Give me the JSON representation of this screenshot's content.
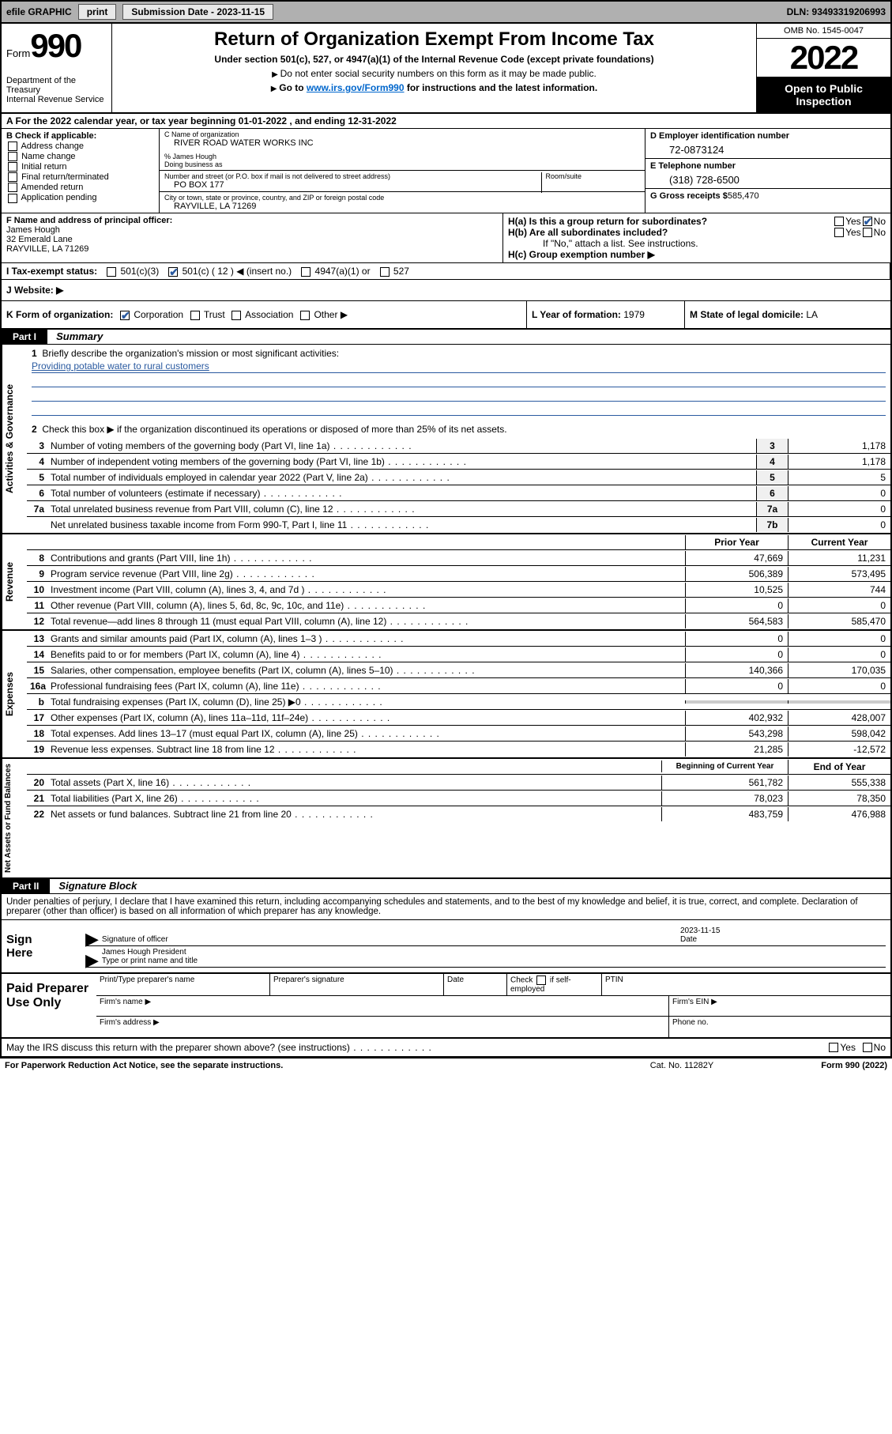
{
  "topbar": {
    "efile": "efile GRAPHIC",
    "print": "print",
    "sub_lbl": "Submission Date - 2023-11-15",
    "dln": "DLN: 93493319206993"
  },
  "header": {
    "form_word": "Form",
    "form_num": "990",
    "dept": "Department of the Treasury",
    "irs": "Internal Revenue Service",
    "title": "Return of Organization Exempt From Income Tax",
    "sub": "Under section 501(c), 527, or 4947(a)(1) of the Internal Revenue Code (except private foundations)",
    "inst1": "Do not enter social security numbers on this form as it may be made public.",
    "inst2_a": "Go to ",
    "inst2_link": "www.irs.gov/Form990",
    "inst2_b": " for instructions and the latest information.",
    "omb": "OMB No. 1545-0047",
    "year": "2022",
    "open": "Open to Public Inspection"
  },
  "rowA": {
    "text_a": "A For the 2022 calendar year, or tax year beginning ",
    "begin": "01-01-2022",
    "text_b": "   , and ending ",
    "end": "12-31-2022"
  },
  "colB": {
    "hdr": "B Check if applicable:",
    "items": [
      "Address change",
      "Name change",
      "Initial return",
      "Final return/terminated",
      "Amended return",
      "Application pending"
    ]
  },
  "colC": {
    "name_lb": "C Name of organization",
    "name": "RIVER ROAD WATER WORKS INC",
    "care_lb": "% James Hough",
    "dba_lb": "Doing business as",
    "addr_lb": "Number and street (or P.O. box if mail is not delivered to street address)",
    "room_lb": "Room/suite",
    "addr": "PO BOX 177",
    "city_lb": "City or town, state or province, country, and ZIP or foreign postal code",
    "city": "RAYVILLE, LA   71269"
  },
  "colD": {
    "ein_lb": "D Employer identification number",
    "ein": "72-0873124",
    "tel_lb": "E Telephone number",
    "tel": "(318) 728-6500",
    "gross_lb": "G Gross receipts $",
    "gross": "585,470"
  },
  "colF": {
    "lb": "F Name and address of principal officer:",
    "name": "James Hough",
    "addr1": "32 Emerald Lane",
    "addr2": "RAYVILLE, LA   71269"
  },
  "colH": {
    "ha": "H(a)  Is this a group return for subordinates?",
    "hb": "H(b)  Are all subordinates included?",
    "hb_note": "If \"No,\" attach a list. See instructions.",
    "hc": "H(c)  Group exemption number ▶",
    "yes": "Yes",
    "no": "No"
  },
  "rowI": {
    "lb": "I    Tax-exempt status:",
    "o1": "501(c)(3)",
    "o2": "501(c) ( 12 ) ◀ (insert no.)",
    "o3": "4947(a)(1) or",
    "o4": "527"
  },
  "rowJ": {
    "lb": "J    Website: ▶"
  },
  "rowK": {
    "lb": "K Form of organization:",
    "o1": "Corporation",
    "o2": "Trust",
    "o3": "Association",
    "o4": "Other ▶",
    "l_lb": "L Year of formation: ",
    "l_val": "1979",
    "m_lb": "M State of legal domicile: ",
    "m_val": "LA"
  },
  "part1": {
    "hdr": "Part I",
    "title": "Summary"
  },
  "gov": {
    "tab": "Activities & Governance",
    "l1": "Briefly describe the organization's mission or most significant activities:",
    "l1v": "Providing potable water to rural customers",
    "l2": "Check this box ▶         if the organization discontinued its operations or disposed of more than 25% of its net assets.",
    "rows": [
      {
        "n": "3",
        "t": "Number of voting members of the governing body (Part VI, line 1a)",
        "b": "3",
        "v": "1,178"
      },
      {
        "n": "4",
        "t": "Number of independent voting members of the governing body (Part VI, line 1b)",
        "b": "4",
        "v": "1,178"
      },
      {
        "n": "5",
        "t": "Total number of individuals employed in calendar year 2022 (Part V, line 2a)",
        "b": "5",
        "v": "5"
      },
      {
        "n": "6",
        "t": "Total number of volunteers (estimate if necessary)",
        "b": "6",
        "v": "0"
      },
      {
        "n": "7a",
        "t": "Total unrelated business revenue from Part VIII, column (C), line 12",
        "b": "7a",
        "v": "0"
      },
      {
        "n": "",
        "t": "Net unrelated business taxable income from Form 990-T, Part I, line 11",
        "b": "7b",
        "v": "0"
      }
    ]
  },
  "rev": {
    "tab": "Revenue",
    "hdr_prior": "Prior Year",
    "hdr_curr": "Current Year",
    "rows": [
      {
        "n": "8",
        "t": "Contributions and grants (Part VIII, line 1h)",
        "p": "47,669",
        "c": "11,231"
      },
      {
        "n": "9",
        "t": "Program service revenue (Part VIII, line 2g)",
        "p": "506,389",
        "c": "573,495"
      },
      {
        "n": "10",
        "t": "Investment income (Part VIII, column (A), lines 3, 4, and 7d )",
        "p": "10,525",
        "c": "744"
      },
      {
        "n": "11",
        "t": "Other revenue (Part VIII, column (A), lines 5, 6d, 8c, 9c, 10c, and 11e)",
        "p": "0",
        "c": "0"
      },
      {
        "n": "12",
        "t": "Total revenue—add lines 8 through 11 (must equal Part VIII, column (A), line 12)",
        "p": "564,583",
        "c": "585,470"
      }
    ]
  },
  "exp": {
    "tab": "Expenses",
    "rows": [
      {
        "n": "13",
        "t": "Grants and similar amounts paid (Part IX, column (A), lines 1–3 )",
        "p": "0",
        "c": "0"
      },
      {
        "n": "14",
        "t": "Benefits paid to or for members (Part IX, column (A), line 4)",
        "p": "0",
        "c": "0"
      },
      {
        "n": "15",
        "t": "Salaries, other compensation, employee benefits (Part IX, column (A), lines 5–10)",
        "p": "140,366",
        "c": "170,035"
      },
      {
        "n": "16a",
        "t": "Professional fundraising fees (Part IX, column (A), line 11e)",
        "p": "0",
        "c": "0"
      },
      {
        "n": "b",
        "t": "Total fundraising expenses (Part IX, column (D), line 25) ▶0",
        "p": "",
        "c": ""
      },
      {
        "n": "17",
        "t": "Other expenses (Part IX, column (A), lines 11a–11d, 11f–24e)",
        "p": "402,932",
        "c": "428,007"
      },
      {
        "n": "18",
        "t": "Total expenses. Add lines 13–17 (must equal Part IX, column (A), line 25)",
        "p": "543,298",
        "c": "598,042"
      },
      {
        "n": "19",
        "t": "Revenue less expenses. Subtract line 18 from line 12",
        "p": "21,285",
        "c": "-12,572"
      }
    ]
  },
  "na": {
    "tab": "Net Assets or Fund Balances",
    "hdr_b": "Beginning of Current Year",
    "hdr_e": "End of Year",
    "rows": [
      {
        "n": "20",
        "t": "Total assets (Part X, line 16)",
        "p": "561,782",
        "c": "555,338"
      },
      {
        "n": "21",
        "t": "Total liabilities (Part X, line 26)",
        "p": "78,023",
        "c": "78,350"
      },
      {
        "n": "22",
        "t": "Net assets or fund balances. Subtract line 21 from line 20",
        "p": "483,759",
        "c": "476,988"
      }
    ]
  },
  "part2": {
    "hdr": "Part II",
    "title": "Signature Block",
    "decl": "Under penalties of perjury, I declare that I have examined this return, including accompanying schedules and statements, and to the best of my knowledge and belief, it is true, correct, and complete. Declaration of preparer (other than officer) is based on all information of which preparer has any knowledge."
  },
  "sign": {
    "lbl": "Sign Here",
    "sig_lb": "Signature of officer",
    "date": "2023-11-15",
    "date_lb": "Date",
    "name": "James Hough  President",
    "name_lb": "Type or print name and title"
  },
  "prep": {
    "lbl": "Paid Preparer Use Only",
    "c1": "Print/Type preparer's name",
    "c2": "Preparer's signature",
    "c3": "Date",
    "c4a": "Check",
    "c4b": "if self-employed",
    "c5": "PTIN",
    "fn": "Firm's name   ▶",
    "fe": "Firm's EIN ▶",
    "fa": "Firm's address ▶",
    "ph": "Phone no."
  },
  "may": {
    "t": "May the IRS discuss this return with the preparer shown above? (see instructions)",
    "yes": "Yes",
    "no": "No"
  },
  "footer": {
    "l": "For Paperwork Reduction Act Notice, see the separate instructions.",
    "m": "Cat. No. 11282Y",
    "r": "Form 990 (2022)"
  },
  "colors": {
    "link": "#0066cc",
    "check": "#2a5aa0",
    "topbar_bg": "#b0b0b0"
  }
}
